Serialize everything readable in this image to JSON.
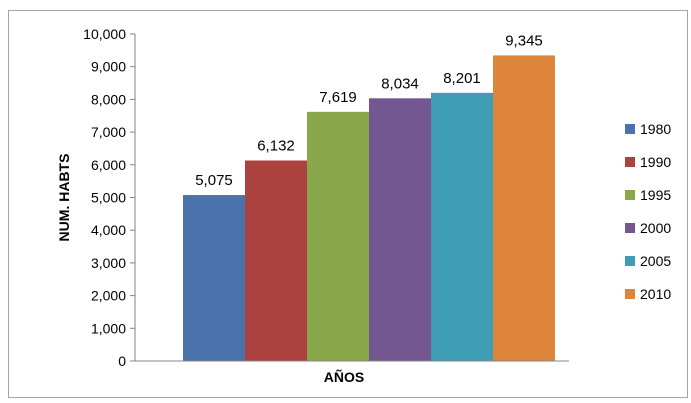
{
  "chart_data": {
    "type": "bar",
    "title": "",
    "xlabel": "AÑOS",
    "ylabel": "NUM. HABTS",
    "ylim": [
      0,
      10000
    ],
    "y_ticks": [
      "0",
      "1,000",
      "2,000",
      "3,000",
      "4,000",
      "5,000",
      "6,000",
      "7,000",
      "8,000",
      "9,000",
      "10,000"
    ],
    "grid": false,
    "legend_position": "right",
    "series": [
      {
        "name": "1980",
        "value": 5075,
        "label": "5,075",
        "color": "#4a72ad"
      },
      {
        "name": "1990",
        "value": 6132,
        "label": "6,132",
        "color": "#ab4240"
      },
      {
        "name": "1995",
        "value": 7619,
        "label": "7,619",
        "color": "#88a84a"
      },
      {
        "name": "2000",
        "value": 8034,
        "label": "8,034",
        "color": "#735793"
      },
      {
        "name": "2005",
        "value": 8201,
        "label": "8,201",
        "color": "#3f9db6"
      },
      {
        "name": "2010",
        "value": 9345,
        "label": "9,345",
        "color": "#dd853b"
      }
    ]
  }
}
